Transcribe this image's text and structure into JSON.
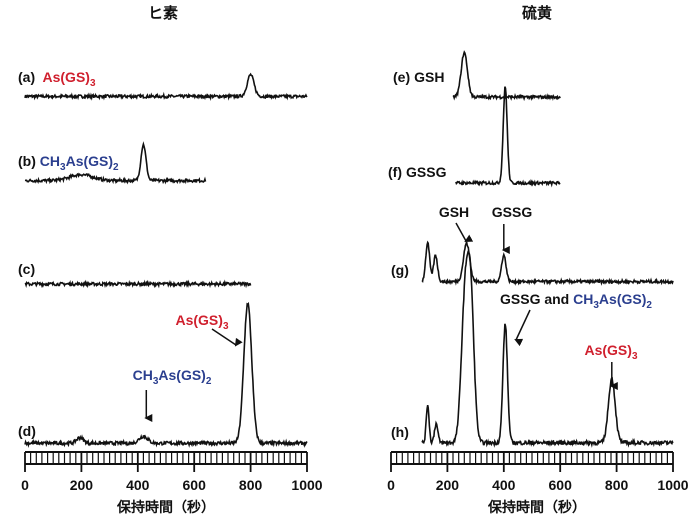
{
  "colors": {
    "trace": "#111111",
    "red": "#d0202e",
    "blue": "#2b3f8f"
  },
  "chart_data": [
    {
      "type": "line",
      "title": "ヒ素",
      "xlabel": "保持時間（秒）",
      "xlim": [
        0,
        1000
      ],
      "xticks": [
        "0",
        "200",
        "400",
        "600",
        "800",
        "1000"
      ],
      "grid": false,
      "series": [
        {
          "label_prefix": "(a)",
          "compound": {
            "main": "As(GS)",
            "sub": "3"
          },
          "compound_color": "red",
          "x_range": [
            0,
            1000
          ],
          "baseline": 0.03,
          "peaks": [
            {
              "x": 800,
              "height": 0.18,
              "width": 12
            }
          ]
        },
        {
          "label_prefix": "(b)",
          "compound": {
            "pre": "CH",
            "sub1": "3",
            "mid": "As(GS)",
            "sub2": "2"
          },
          "compound_color": "blue",
          "x_range": [
            0,
            640
          ],
          "baseline": 0.02,
          "peaks": [
            {
              "x": 200,
              "height": 0.05,
              "width": 40
            },
            {
              "x": 420,
              "height": 0.3,
              "width": 9
            }
          ]
        },
        {
          "label_prefix": "(c)",
          "x_range": [
            0,
            800
          ],
          "baseline": 0.0,
          "peaks": []
        },
        {
          "label_prefix": "(d)",
          "x_range": [
            0,
            1000
          ],
          "baseline": 0.02,
          "peaks": [
            {
              "x": 195,
              "height": 0.04,
              "width": 12
            },
            {
              "x": 420,
              "height": 0.05,
              "width": 15
            },
            {
              "x": 790,
              "height": 1.0,
              "width": 14
            }
          ]
        }
      ],
      "annotations": [
        {
          "kind": "compound",
          "pre": "CH",
          "sub1": "3",
          "mid": "As(GS)",
          "sub2": "2",
          "color": "blue",
          "arrow_to_x": 430
        },
        {
          "kind": "compound",
          "main": "As(GS)",
          "sub": "3",
          "color": "red",
          "arrow_to_x": 785
        }
      ]
    },
    {
      "type": "line",
      "title": "硫黄",
      "xlabel": "保持時間（秒）",
      "xlim": [
        0,
        1000
      ],
      "xticks": [
        "0",
        "200",
        "400",
        "600",
        "800",
        "1000"
      ],
      "grid": false,
      "series": [
        {
          "label_prefix": "(e)",
          "label_text": "GSH",
          "x_range": [
            220,
            600
          ],
          "baseline": 0.0,
          "peaks": [
            {
              "x": 260,
              "height": 0.37,
              "width": 11
            }
          ]
        },
        {
          "label_prefix": "(f)",
          "label_text": "GSSG",
          "x_range": [
            230,
            600
          ],
          "baseline": 0.0,
          "peaks": [
            {
              "x": 405,
              "height": 0.8,
              "width": 7
            }
          ]
        },
        {
          "label_prefix": "(g)",
          "x_range": [
            110,
            1000
          ],
          "baseline": 0.02,
          "peaks": [
            {
              "x": 130,
              "height": 0.32,
              "width": 7
            },
            {
              "x": 158,
              "height": 0.22,
              "width": 7
            },
            {
              "x": 268,
              "height": 0.32,
              "width": 11
            },
            {
              "x": 400,
              "height": 0.22,
              "width": 8
            }
          ]
        },
        {
          "label_prefix": "(h)",
          "x_range": [
            110,
            1000
          ],
          "baseline": 0.02,
          "peaks": [
            {
              "x": 130,
              "height": 0.24,
              "width": 5
            },
            {
              "x": 160,
              "height": 0.12,
              "width": 6
            },
            {
              "x": 262,
              "height": 0.85,
              "width": 13
            },
            {
              "x": 283,
              "height": 0.85,
              "width": 12
            },
            {
              "x": 405,
              "height": 0.74,
              "width": 8
            },
            {
              "x": 783,
              "height": 0.4,
              "width": 12
            }
          ]
        }
      ],
      "annotations": [
        {
          "kind": "text",
          "text": "GSH",
          "arrow_to_x": 268
        },
        {
          "kind": "text",
          "text": "GSSG",
          "arrow_to_x": 400
        },
        {
          "kind": "mixed",
          "text": "GSSG and ",
          "pre": "CH",
          "sub1": "3",
          "mid": "As(GS)",
          "sub2": "2",
          "color": "blue",
          "arrow_to_x": 415
        },
        {
          "kind": "compound",
          "main": "As(GS)",
          "sub": "3",
          "color": "red",
          "arrow_to_x": 783
        }
      ]
    }
  ]
}
